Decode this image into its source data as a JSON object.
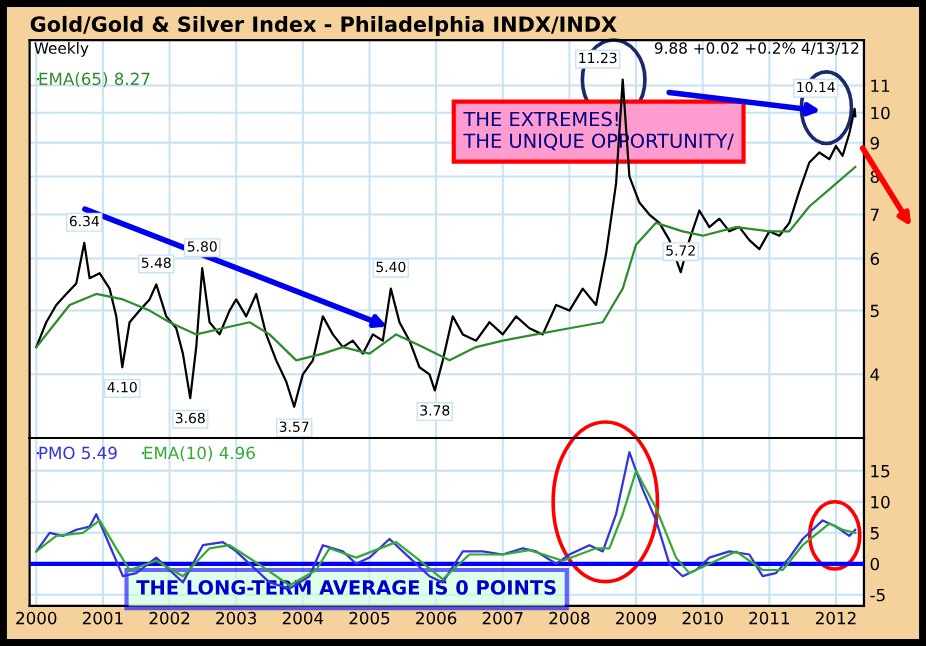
{
  "chart_data": [
    {
      "type": "line",
      "title": "Gold/Gold & Silver Index - Philadelphia INDX/INDX",
      "log": true,
      "grid": true,
      "legend": "top left",
      "tick_labels": "y",
      "xlim": [
        1999.9,
        2012.42
      ],
      "xticks": [
        2000,
        2001,
        2002,
        2003,
        2004,
        2005,
        2006,
        2007,
        2008,
        2009,
        2010,
        2011,
        2012
      ],
      "ylim": [
        3.2,
        12.9
      ],
      "yticks": [
        4,
        5,
        6,
        7,
        8,
        9,
        10,
        11
      ],
      "series": [
        {
          "color": "#000000",
          "x": [
            2000.0,
            2000.15,
            2000.3,
            2000.45,
            2000.6,
            2000.72,
            2000.8,
            2000.95,
            2001.1,
            2001.2,
            2001.29,
            2001.4,
            2001.55,
            2001.7,
            2001.8,
            2001.95,
            2002.1,
            2002.2,
            2002.31,
            2002.4,
            2002.49,
            2002.6,
            2002.75,
            2002.9,
            2003.0,
            2003.15,
            2003.3,
            2003.45,
            2003.6,
            2003.75,
            2003.87,
            2004.0,
            2004.15,
            2004.3,
            2004.45,
            2004.6,
            2004.75,
            2004.9,
            2005.05,
            2005.2,
            2005.32,
            2005.45,
            2005.6,
            2005.75,
            2005.9,
            2005.98,
            2006.1,
            2006.25,
            2006.4,
            2006.6,
            2006.8,
            2007.0,
            2007.2,
            2007.4,
            2007.6,
            2007.8,
            2008.0,
            2008.2,
            2008.4,
            2008.55,
            2008.7,
            2008.8,
            2008.9,
            2009.05,
            2009.2,
            2009.35,
            2009.5,
            2009.67,
            2009.8,
            2009.95,
            2010.1,
            2010.25,
            2010.4,
            2010.55,
            2010.7,
            2010.85,
            2011.0,
            2011.15,
            2011.3,
            2011.45,
            2011.6,
            2011.75,
            2011.9,
            2012.0,
            2012.1,
            2012.2,
            2012.28,
            2012.29
          ],
          "values": [
            4.4,
            4.8,
            5.1,
            5.3,
            5.5,
            6.34,
            5.6,
            5.7,
            5.4,
            4.9,
            4.1,
            4.8,
            5.0,
            5.2,
            5.48,
            4.9,
            4.7,
            4.3,
            3.68,
            4.4,
            5.8,
            4.8,
            4.6,
            5.0,
            5.2,
            4.9,
            5.3,
            4.6,
            4.2,
            3.9,
            3.57,
            4.0,
            4.2,
            4.9,
            4.6,
            4.4,
            4.5,
            4.3,
            4.6,
            4.5,
            5.4,
            4.8,
            4.5,
            4.1,
            4.0,
            3.78,
            4.2,
            4.9,
            4.6,
            4.5,
            4.8,
            4.6,
            4.9,
            4.7,
            4.6,
            5.1,
            5.0,
            5.4,
            5.1,
            6.1,
            7.8,
            11.23,
            8.0,
            7.3,
            7.0,
            6.8,
            6.4,
            5.72,
            6.4,
            7.1,
            6.7,
            6.9,
            6.6,
            6.7,
            6.4,
            6.2,
            6.6,
            6.5,
            6.8,
            7.6,
            8.4,
            8.7,
            8.5,
            8.9,
            8.6,
            9.3,
            10.14,
            9.88
          ]
        },
        {
          "name": "EMA(65) 8.27",
          "color": "#2e8b2e",
          "x": [
            2000.0,
            2000.5,
            2000.9,
            2001.3,
            2001.7,
            2002.0,
            2002.4,
            2002.8,
            2003.2,
            2003.5,
            2003.9,
            2004.3,
            2004.6,
            2005.0,
            2005.4,
            2005.8,
            2006.2,
            2006.6,
            2007.0,
            2007.5,
            2008.0,
            2008.5,
            2008.8,
            2009.0,
            2009.3,
            2009.7,
            2010.0,
            2010.5,
            2011.0,
            2011.3,
            2011.6,
            2012.0,
            2012.29
          ],
          "values": [
            4.4,
            5.1,
            5.3,
            5.2,
            5.0,
            4.8,
            4.6,
            4.7,
            4.8,
            4.6,
            4.2,
            4.3,
            4.4,
            4.3,
            4.6,
            4.4,
            4.2,
            4.4,
            4.5,
            4.6,
            4.7,
            4.8,
            5.4,
            6.3,
            6.8,
            6.6,
            6.5,
            6.7,
            6.6,
            6.6,
            7.2,
            7.8,
            8.27
          ]
        }
      ],
      "annotations": [
        "Weekly",
        "9.88 +0.02 +0.2% 4/13/12",
        "THE EXTREMES!\nTHE UNIQUE OPPORTUNITY/",
        {
          "text": "6.34",
          "x": 2000.72,
          "y": 6.34
        },
        {
          "text": "4.10",
          "x": 2001.29,
          "y": 4.1
        },
        {
          "text": "5.48",
          "x": 2001.8,
          "y": 5.48
        },
        {
          "text": "3.68",
          "x": 2002.31,
          "y": 3.68
        },
        {
          "text": "5.80",
          "x": 2002.49,
          "y": 5.8
        },
        {
          "text": "3.57",
          "x": 2003.87,
          "y": 3.57
        },
        {
          "text": "5.40",
          "x": 2005.32,
          "y": 5.4
        },
        {
          "text": "3.78",
          "x": 2005.98,
          "y": 3.78
        },
        {
          "text": "11.23",
          "x": 2008.8,
          "y": 11.23
        },
        {
          "text": "5.72",
          "x": 2009.67,
          "y": 5.72
        },
        {
          "text": "10.14",
          "x": 2012.28,
          "y": 10.14
        }
      ]
    },
    {
      "type": "line",
      "grid": true,
      "legend": "top left",
      "xlim": [
        1999.9,
        2012.42
      ],
      "xticks": [
        2000,
        2001,
        2002,
        2003,
        2004,
        2005,
        2006,
        2007,
        2008,
        2009,
        2010,
        2011,
        2012
      ],
      "ylim": [
        -6.8,
        20.3
      ],
      "yticks": [
        -5,
        0,
        5,
        10,
        15
      ],
      "ref_lines": [
        {
          "axis": "y",
          "value": 0,
          "color": "#0000ff"
        }
      ],
      "series": [
        {
          "name": "PMO 5.49",
          "color": "#3333dd",
          "x": [
            2000.0,
            2000.2,
            2000.4,
            2000.6,
            2000.8,
            2000.9,
            2001.1,
            2001.3,
            2001.5,
            2001.8,
            2002.0,
            2002.2,
            2002.5,
            2002.8,
            2003.0,
            2003.3,
            2003.5,
            2003.8,
            2004.1,
            2004.3,
            2004.6,
            2004.8,
            2005.0,
            2005.3,
            2005.6,
            2005.9,
            2006.1,
            2006.4,
            2006.7,
            2007.0,
            2007.3,
            2007.5,
            2007.8,
            2008.0,
            2008.3,
            2008.5,
            2008.7,
            2008.9,
            2009.1,
            2009.3,
            2009.5,
            2009.7,
            2009.9,
            2010.1,
            2010.4,
            2010.7,
            2010.9,
            2011.1,
            2011.3,
            2011.5,
            2011.8,
            2012.0,
            2012.2,
            2012.29
          ],
          "values": [
            2,
            5,
            4.5,
            5.5,
            6,
            8,
            3,
            -2,
            -1.5,
            1,
            -1,
            -3,
            3,
            3.5,
            2,
            -1,
            -3,
            -4,
            -2,
            3,
            2,
            0,
            1,
            4,
            1,
            -2,
            -3,
            2,
            2,
            1.5,
            2.5,
            2,
            0,
            1.5,
            3,
            2,
            8,
            18,
            12,
            7,
            0,
            -2,
            -1,
            1,
            2,
            1.5,
            -2,
            -1.5,
            1,
            4,
            7,
            6,
            4.5,
            5.5
          ]
        },
        {
          "name": "EMA(10) 4.96",
          "color": "#33aa33",
          "x": [
            2000.0,
            2000.3,
            2000.7,
            2000.95,
            2001.2,
            2001.4,
            2001.8,
            2002.2,
            2002.6,
            2002.9,
            2003.4,
            2003.8,
            2004.2,
            2004.4,
            2004.8,
            2005.4,
            2005.7,
            2006.1,
            2006.5,
            2007.0,
            2007.4,
            2007.9,
            2008.4,
            2008.6,
            2008.8,
            2009.0,
            2009.3,
            2009.6,
            2009.8,
            2010.2,
            2010.5,
            2010.9,
            2011.2,
            2011.5,
            2011.9,
            2012.1,
            2012.29
          ],
          "values": [
            2,
            4.5,
            5,
            7,
            2.5,
            -1,
            0.5,
            -2,
            2.5,
            3,
            -0.5,
            -3.5,
            -1,
            2.5,
            1,
            3.5,
            1,
            -2.5,
            1.5,
            1.5,
            2.2,
            0.5,
            2.5,
            2.5,
            8,
            15,
            9,
            1,
            -1.5,
            0.5,
            2,
            -1,
            -1,
            3,
            6.5,
            5.5,
            5.0
          ]
        }
      ],
      "annotations": [
        "THE LONG-TERM AVERAGE IS 0 POINTS"
      ]
    }
  ]
}
